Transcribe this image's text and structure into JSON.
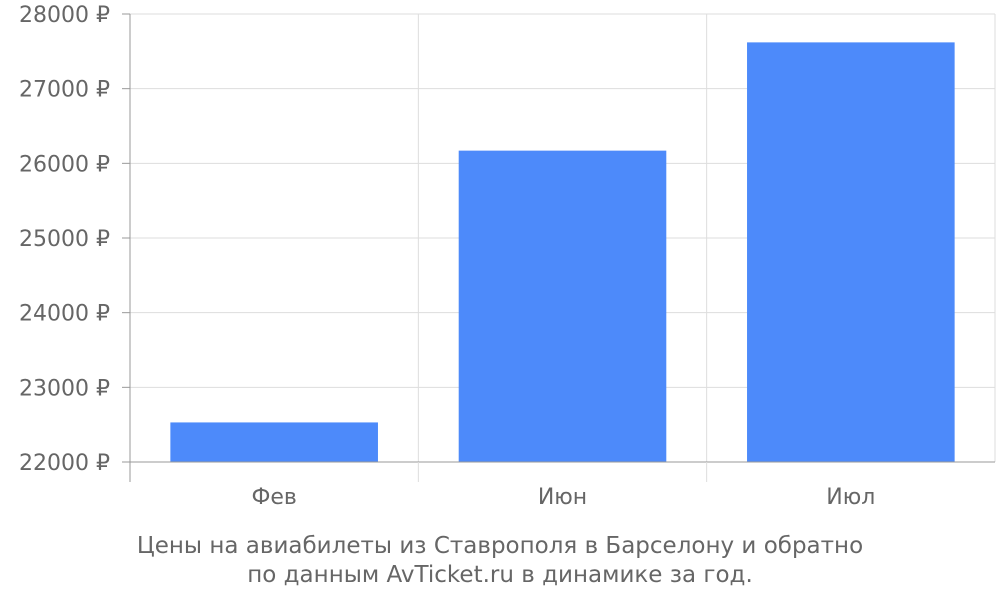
{
  "chart_data": {
    "type": "bar",
    "categories": [
      "Фев",
      "Июн",
      "Июл"
    ],
    "values": [
      22530,
      26170,
      27620
    ],
    "ylim": [
      22000,
      28000
    ],
    "y_ticks": [
      22000,
      23000,
      24000,
      25000,
      26000,
      27000,
      28000
    ],
    "y_tick_suffix": " ₽",
    "bar_color": "#4d8afa",
    "grid": true
  },
  "caption": {
    "line1": "Цены на авиабилеты из Ставрополя в Барселону и обратно",
    "line2": "по данным AvTicket.ru в динамике за год."
  }
}
